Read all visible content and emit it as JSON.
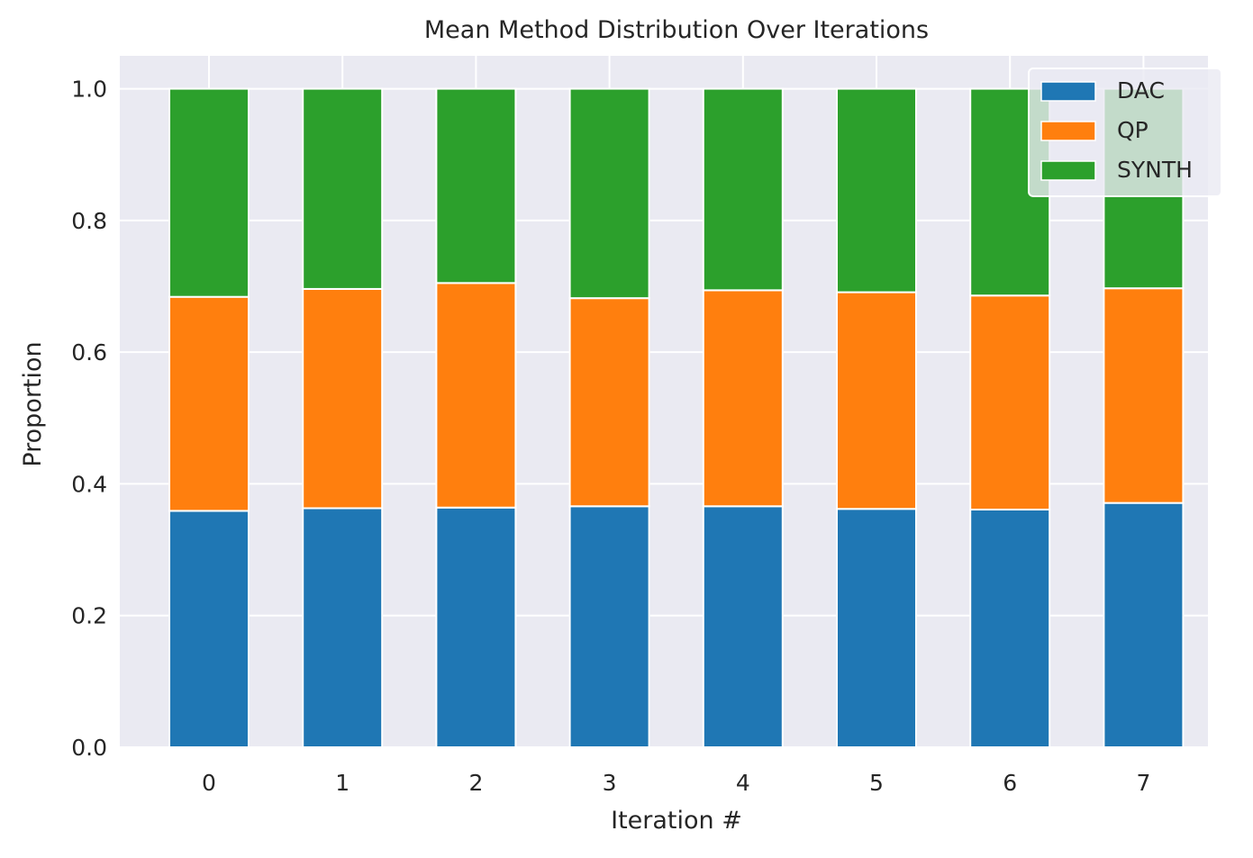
{
  "chart_data": {
    "type": "bar",
    "stacked": true,
    "title": "Mean Method Distribution Over Iterations",
    "xlabel": "Iteration #",
    "ylabel": "Proportion",
    "categories": [
      "0",
      "1",
      "2",
      "3",
      "4",
      "5",
      "6",
      "7"
    ],
    "ylim": [
      0,
      1.05
    ],
    "yticks": [
      "0.0",
      "0.2",
      "0.4",
      "0.6",
      "0.8",
      "1.0"
    ],
    "grid": true,
    "legend_position": "top-right",
    "series": [
      {
        "name": "DAC",
        "color": "#1f77b4",
        "values": [
          0.359,
          0.363,
          0.364,
          0.366,
          0.366,
          0.362,
          0.361,
          0.371
        ]
      },
      {
        "name": "QP",
        "color": "#ff7f0e",
        "values": [
          0.325,
          0.333,
          0.341,
          0.316,
          0.328,
          0.329,
          0.325,
          0.326
        ]
      },
      {
        "name": "SYNTH",
        "color": "#2ca02c",
        "values": [
          0.316,
          0.304,
          0.295,
          0.318,
          0.306,
          0.309,
          0.314,
          0.303
        ]
      }
    ]
  }
}
